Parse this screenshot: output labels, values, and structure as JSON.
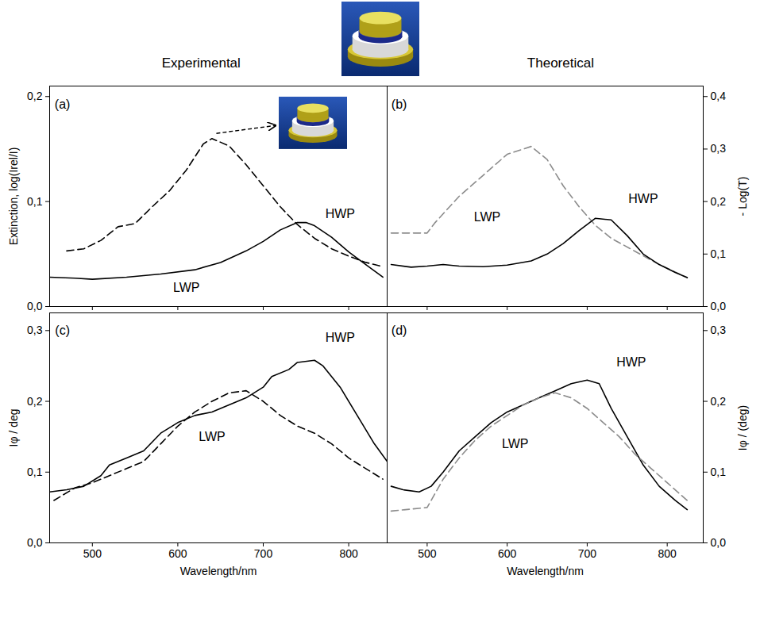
{
  "chart_data": [
    {
      "type": "line",
      "title": "Experimental",
      "ylabel": "Extinction, log(Irel/I)",
      "xlim": [
        450,
        845
      ],
      "xticks": [
        500,
        600,
        700,
        800
      ],
      "ylim": [
        0,
        0.21
      ],
      "yticks": [
        {
          "value": 0,
          "label": "0,0"
        },
        {
          "value": 0.1,
          "label": "0,1"
        },
        {
          "value": 0.2,
          "label": "0,2"
        }
      ],
      "grid": false,
      "tick_labels": "y",
      "series": [
        {
          "color": "#000000",
          "line_style": "dashed",
          "x": [
            470,
            490,
            510,
            530,
            550,
            570,
            590,
            610,
            630,
            640,
            660,
            680,
            700,
            720,
            740,
            760,
            780,
            800,
            820,
            840
          ],
          "values": [
            0.053,
            0.055,
            0.063,
            0.076,
            0.079,
            0.095,
            0.11,
            0.13,
            0.155,
            0.16,
            0.153,
            0.135,
            0.115,
            0.095,
            0.078,
            0.065,
            0.055,
            0.048,
            0.042,
            0.038
          ]
        },
        {
          "color": "#000000",
          "line_style": "solid",
          "x": [
            450,
            480,
            500,
            540,
            580,
            620,
            650,
            680,
            700,
            720,
            740,
            750,
            760,
            780,
            800,
            820,
            840
          ],
          "values": [
            0.028,
            0.027,
            0.026,
            0.028,
            0.031,
            0.035,
            0.042,
            0.053,
            0.062,
            0.073,
            0.08,
            0.08,
            0.077,
            0.066,
            0.052,
            0.04,
            0.028
          ]
        }
      ],
      "annotations": [
        {
          "text": "(a)",
          "x": 465,
          "y": 0.192
        },
        {
          "text": "HWP",
          "x": 790,
          "y": 0.088
        },
        {
          "text": "LWP",
          "x": 610,
          "y": 0.018
        }
      ]
    },
    {
      "type": "line",
      "title": "Theoretical",
      "ylabel": "- Log(T)",
      "xlim": [
        450,
        845
      ],
      "xticks": [
        500,
        600,
        700,
        800
      ],
      "ylim": [
        0,
        0.42
      ],
      "yticks": [
        {
          "value": 0,
          "label": "0,0"
        },
        {
          "value": 0.1,
          "label": "0,1"
        },
        {
          "value": 0.2,
          "label": "0,2"
        },
        {
          "value": 0.3,
          "label": "0,3"
        },
        {
          "value": 0.4,
          "label": "0,4"
        }
      ],
      "grid": false,
      "tick_labels": "y",
      "series": [
        {
          "color": "#8c8c8c",
          "line_style": "dashed",
          "x": [
            455,
            500,
            510,
            540,
            570,
            600,
            630,
            650,
            670,
            690,
            710,
            730,
            760,
            790,
            825
          ],
          "values": [
            0.14,
            0.14,
            0.16,
            0.21,
            0.25,
            0.29,
            0.305,
            0.28,
            0.23,
            0.19,
            0.155,
            0.13,
            0.105,
            0.08,
            0.055
          ]
        },
        {
          "color": "#000000",
          "line_style": "solid",
          "x": [
            455,
            480,
            500,
            520,
            540,
            570,
            600,
            630,
            650,
            670,
            690,
            710,
            730,
            750,
            770,
            790,
            810,
            825
          ],
          "values": [
            0.08,
            0.075,
            0.077,
            0.08,
            0.077,
            0.076,
            0.079,
            0.087,
            0.1,
            0.12,
            0.145,
            0.168,
            0.165,
            0.135,
            0.1,
            0.08,
            0.065,
            0.055
          ]
        }
      ],
      "annotations": [
        {
          "text": "(b)",
          "x": 465,
          "y": 0.385
        },
        {
          "text": "HWP",
          "x": 770,
          "y": 0.205
        },
        {
          "text": "LWP",
          "x": 575,
          "y": 0.17
        }
      ]
    },
    {
      "type": "line",
      "ylabel": "Iφ / deg",
      "xlabel": "Wavelength/nm",
      "xlim": [
        450,
        845
      ],
      "xticks": [
        500,
        600,
        700,
        800
      ],
      "ylim": [
        0,
        0.325
      ],
      "yticks": [
        {
          "value": 0,
          "label": "0,0"
        },
        {
          "value": 0.1,
          "label": "0,1"
        },
        {
          "value": 0.2,
          "label": "0,2"
        },
        {
          "value": 0.3,
          "label": "0,3"
        }
      ],
      "grid": false,
      "series": [
        {
          "color": "#000000",
          "line_style": "solid",
          "x": [
            450,
            470,
            490,
            510,
            520,
            540,
            560,
            580,
            600,
            620,
            640,
            660,
            680,
            700,
            710,
            730,
            740,
            760,
            770,
            790,
            810,
            830,
            845
          ],
          "values": [
            0.072,
            0.075,
            0.08,
            0.095,
            0.11,
            0.12,
            0.13,
            0.155,
            0.17,
            0.18,
            0.185,
            0.195,
            0.205,
            0.22,
            0.235,
            0.245,
            0.255,
            0.258,
            0.25,
            0.22,
            0.18,
            0.14,
            0.115
          ]
        },
        {
          "color": "#000000",
          "line_style": "dashed",
          "x": [
            455,
            480,
            500,
            520,
            540,
            560,
            580,
            600,
            620,
            640,
            660,
            680,
            700,
            720,
            740,
            760,
            780,
            800,
            820,
            840
          ],
          "values": [
            0.06,
            0.078,
            0.085,
            0.095,
            0.105,
            0.115,
            0.14,
            0.165,
            0.185,
            0.2,
            0.212,
            0.215,
            0.2,
            0.18,
            0.165,
            0.155,
            0.14,
            0.12,
            0.105,
            0.09
          ]
        }
      ],
      "annotations": [
        {
          "text": "(c)",
          "x": 465,
          "y": 0.3
        },
        {
          "text": "HWP",
          "x": 790,
          "y": 0.29
        },
        {
          "text": "LWP",
          "x": 640,
          "y": 0.15
        }
      ]
    },
    {
      "type": "line",
      "ylabel": "Iφ / (deg)",
      "xlabel": "Wavelength/nm",
      "xlim": [
        450,
        845
      ],
      "xticks": [
        500,
        600,
        700,
        800
      ],
      "ylim": [
        0,
        0.325
      ],
      "yticks": [
        {
          "value": 0,
          "label": "0,0"
        },
        {
          "value": 0.1,
          "label": "0,1"
        },
        {
          "value": 0.2,
          "label": "0,2"
        },
        {
          "value": 0.3,
          "label": "0,3"
        }
      ],
      "grid": false,
      "series": [
        {
          "color": "#000000",
          "line_style": "solid",
          "x": [
            455,
            470,
            490,
            505,
            520,
            540,
            560,
            580,
            600,
            620,
            640,
            660,
            680,
            700,
            715,
            730,
            750,
            770,
            790,
            810,
            825
          ],
          "values": [
            0.08,
            0.075,
            0.072,
            0.08,
            0.1,
            0.13,
            0.15,
            0.17,
            0.185,
            0.195,
            0.205,
            0.215,
            0.225,
            0.23,
            0.225,
            0.19,
            0.15,
            0.11,
            0.08,
            0.06,
            0.047
          ]
        },
        {
          "color": "#8c8c8c",
          "line_style": "dashed",
          "x": [
            455,
            500,
            520,
            540,
            560,
            580,
            600,
            620,
            640,
            660,
            680,
            700,
            720,
            740,
            760,
            780,
            800,
            825
          ],
          "values": [
            0.045,
            0.05,
            0.09,
            0.12,
            0.145,
            0.165,
            0.18,
            0.195,
            0.205,
            0.212,
            0.205,
            0.19,
            0.17,
            0.15,
            0.125,
            0.105,
            0.085,
            0.06
          ]
        }
      ],
      "annotations": [
        {
          "text": "(d)",
          "x": 465,
          "y": 0.3
        },
        {
          "text": "HWP",
          "x": 755,
          "y": 0.255
        },
        {
          "text": "LWP",
          "x": 610,
          "y": 0.14
        }
      ]
    }
  ]
}
